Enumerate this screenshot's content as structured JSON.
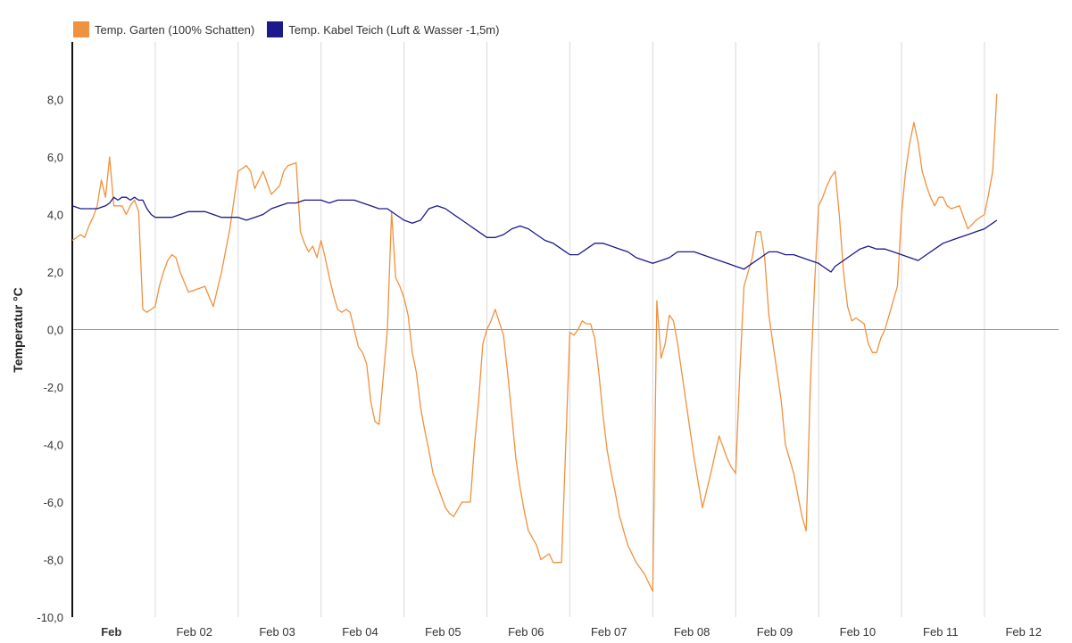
{
  "legend": {
    "series0": "Temp. Garten (100% Schatten)",
    "series1": "Temp. Kabel Teich (Luft & Wasser -1,5m)"
  },
  "colors": {
    "series0": "#f0913e",
    "series1": "#1b1a8a",
    "grid": "#d8d8d8",
    "axis": "#111111",
    "zero": "#9a9a9a"
  },
  "chart_data": {
    "type": "line",
    "xlabel": "",
    "ylabel": "Temperatur °C",
    "ylim": [
      -10,
      10
    ],
    "xlim": [
      0,
      11.15
    ],
    "yticks": [
      {
        "v": 8,
        "label": "8,0"
      },
      {
        "v": 6,
        "label": "6,0"
      },
      {
        "v": 4,
        "label": "4,0"
      },
      {
        "v": 2,
        "label": "2,0"
      },
      {
        "v": 0,
        "label": "0,0"
      },
      {
        "v": -2,
        "label": "-2,0"
      },
      {
        "v": -4,
        "label": "-4,0"
      },
      {
        "v": -6,
        "label": "-6,0"
      },
      {
        "v": -8,
        "label": "-8,0"
      },
      {
        "v": -10,
        "label": "-10,0"
      }
    ],
    "xticks": [
      {
        "v": 0.45,
        "label": "Feb",
        "bold": true
      },
      {
        "v": 1.45,
        "label": "Feb 02"
      },
      {
        "v": 2.45,
        "label": "Feb 03"
      },
      {
        "v": 3.45,
        "label": "Feb 04"
      },
      {
        "v": 4.45,
        "label": "Feb 05"
      },
      {
        "v": 5.45,
        "label": "Feb 06"
      },
      {
        "v": 6.45,
        "label": "Feb 07"
      },
      {
        "v": 7.45,
        "label": "Feb 08"
      },
      {
        "v": 8.45,
        "label": "Feb 09"
      },
      {
        "v": 9.45,
        "label": "Feb 10"
      },
      {
        "v": 10.45,
        "label": "Feb 11"
      },
      {
        "v": 11.45,
        "label": "Feb 12"
      }
    ],
    "gridlines_x": [
      1,
      2,
      3,
      4,
      5,
      6,
      7,
      8,
      9,
      10,
      11
    ],
    "series": [
      {
        "name": "Temp. Garten (100% Schatten)",
        "x": [
          0.0,
          0.1,
          0.15,
          0.2,
          0.25,
          0.3,
          0.35,
          0.4,
          0.45,
          0.5,
          0.55,
          0.6,
          0.65,
          0.7,
          0.75,
          0.8,
          0.85,
          0.9,
          0.95,
          1.0,
          1.05,
          1.1,
          1.15,
          1.2,
          1.25,
          1.3,
          1.4,
          1.5,
          1.6,
          1.7,
          1.8,
          1.9,
          2.0,
          2.1,
          2.15,
          2.2,
          2.3,
          2.4,
          2.5,
          2.55,
          2.6,
          2.7,
          2.75,
          2.8,
          2.85,
          2.9,
          2.95,
          3.0,
          3.05,
          3.1,
          3.15,
          3.2,
          3.25,
          3.3,
          3.35,
          3.4,
          3.45,
          3.5,
          3.55,
          3.6,
          3.65,
          3.7,
          3.8,
          3.85,
          3.9,
          3.95,
          4.0,
          4.05,
          4.1,
          4.15,
          4.2,
          4.25,
          4.3,
          4.35,
          4.4,
          4.45,
          4.5,
          4.55,
          4.6,
          4.7,
          4.8,
          4.85,
          4.9,
          4.95,
          5.0,
          5.05,
          5.1,
          5.2,
          5.25,
          5.3,
          5.35,
          5.4,
          5.45,
          5.5,
          5.6,
          5.65,
          5.7,
          5.75,
          5.8,
          5.9,
          6.0,
          6.05,
          6.1,
          6.15,
          6.2,
          6.25,
          6.3,
          6.35,
          6.4,
          6.45,
          6.5,
          6.55,
          6.6,
          6.7,
          6.8,
          6.9,
          7.0,
          7.05,
          7.1,
          7.15,
          7.2,
          7.25,
          7.3,
          7.35,
          7.4,
          7.45,
          7.5,
          7.6,
          7.7,
          7.8,
          7.9,
          7.95,
          8.0,
          8.05,
          8.1,
          8.15,
          8.2,
          8.25,
          8.3,
          8.35,
          8.4,
          8.45,
          8.5,
          8.55,
          8.6,
          8.7,
          8.8,
          8.85,
          8.9,
          8.95,
          9.0,
          9.05,
          9.1,
          9.15,
          9.2,
          9.25,
          9.3,
          9.35,
          9.4,
          9.45,
          9.5,
          9.55,
          9.6,
          9.65,
          9.7,
          9.75,
          9.8,
          9.85,
          9.9,
          9.95,
          10.0,
          10.05,
          10.1,
          10.15,
          10.2,
          10.25,
          10.3,
          10.35,
          10.4,
          10.45,
          10.5,
          10.55,
          10.6,
          10.7,
          10.8,
          10.9,
          11.0,
          11.05,
          11.1,
          11.15
        ],
        "values": [
          3.1,
          3.3,
          3.2,
          3.6,
          3.9,
          4.3,
          5.2,
          4.6,
          6.0,
          4.3,
          4.3,
          4.3,
          4.0,
          4.3,
          4.5,
          4.1,
          0.7,
          0.6,
          0.7,
          0.8,
          1.5,
          2.0,
          2.4,
          2.6,
          2.5,
          2.0,
          1.3,
          1.4,
          1.5,
          0.8,
          2.0,
          3.5,
          5.5,
          5.7,
          5.5,
          4.9,
          5.5,
          4.7,
          5.0,
          5.5,
          5.7,
          5.8,
          3.4,
          3.0,
          2.7,
          2.9,
          2.5,
          3.1,
          2.5,
          1.8,
          1.2,
          0.7,
          0.6,
          0.7,
          0.6,
          0.0,
          -0.6,
          -0.8,
          -1.2,
          -2.5,
          -3.2,
          -3.3,
          0.0,
          4.1,
          1.8,
          1.5,
          1.1,
          0.5,
          -0.8,
          -1.5,
          -2.7,
          -3.5,
          -4.2,
          -5.0,
          -5.4,
          -5.8,
          -6.2,
          -6.4,
          -6.5,
          -6.0,
          -6.0,
          -4.0,
          -2.5,
          -0.5,
          0.0,
          0.3,
          0.7,
          -0.2,
          -1.5,
          -3.0,
          -4.5,
          -5.5,
          -6.3,
          -7.0,
          -7.5,
          -8.0,
          -7.9,
          -7.8,
          -8.1,
          -8.1,
          -0.1,
          -0.2,
          0.0,
          0.3,
          0.2,
          0.2,
          -0.3,
          -1.5,
          -3.0,
          -4.2,
          -5.0,
          -5.7,
          -6.5,
          -7.5,
          -8.1,
          -8.5,
          -9.1,
          1.0,
          -1.0,
          -0.5,
          0.5,
          0.3,
          -0.5,
          -1.5,
          -2.5,
          -3.5,
          -4.5,
          -6.2,
          -5.0,
          -3.7,
          -4.5,
          -4.8,
          -5.0,
          -1.5,
          1.5,
          2.0,
          2.5,
          3.4,
          3.4,
          2.5,
          0.5,
          -0.5,
          -1.5,
          -2.5,
          -4.0,
          -5.0,
          -6.5,
          -7.0,
          -2.0,
          1.5,
          4.3,
          4.6,
          5.0,
          5.3,
          5.5,
          4.0,
          2.0,
          0.8,
          0.3,
          0.4,
          0.3,
          0.2,
          -0.5,
          -0.8,
          -0.8,
          -0.3,
          0.0,
          0.5,
          1.0,
          1.5,
          4.0,
          5.5,
          6.5,
          7.2,
          6.5,
          5.5,
          5.0,
          4.6,
          4.3,
          4.6,
          4.6,
          4.3,
          4.2,
          4.3,
          3.5,
          3.8,
          4.0,
          4.7,
          5.5,
          8.2
        ]
      },
      {
        "name": "Temp. Kabel Teich (Luft & Wasser -1,5m)",
        "x": [
          0.0,
          0.1,
          0.15,
          0.3,
          0.4,
          0.45,
          0.5,
          0.55,
          0.6,
          0.65,
          0.7,
          0.75,
          0.8,
          0.85,
          0.9,
          0.95,
          1.0,
          1.05,
          1.1,
          1.2,
          1.3,
          1.4,
          1.5,
          1.6,
          1.7,
          1.8,
          1.9,
          2.0,
          2.1,
          2.2,
          2.3,
          2.4,
          2.5,
          2.6,
          2.7,
          2.8,
          2.9,
          3.0,
          3.1,
          3.2,
          3.3,
          3.4,
          3.5,
          3.6,
          3.7,
          3.8,
          3.9,
          4.0,
          4.1,
          4.2,
          4.25,
          4.3,
          4.4,
          4.5,
          4.6,
          4.7,
          4.8,
          4.9,
          5.0,
          5.1,
          5.2,
          5.3,
          5.4,
          5.5,
          5.6,
          5.7,
          5.8,
          5.9,
          6.0,
          6.1,
          6.2,
          6.3,
          6.4,
          6.5,
          6.6,
          6.7,
          6.8,
          6.9,
          7.0,
          7.1,
          7.2,
          7.3,
          7.4,
          7.5,
          7.6,
          7.7,
          7.8,
          7.9,
          8.0,
          8.1,
          8.2,
          8.3,
          8.4,
          8.5,
          8.6,
          8.7,
          8.8,
          8.9,
          9.0,
          9.05,
          9.1,
          9.15,
          9.2,
          9.3,
          9.4,
          9.5,
          9.6,
          9.7,
          9.8,
          9.9,
          10.0,
          10.1,
          10.2,
          10.3,
          10.4,
          10.5,
          10.6,
          10.7,
          10.8,
          10.9,
          11.0,
          11.05,
          11.1,
          11.15
        ],
        "values": [
          4.3,
          4.2,
          4.2,
          4.2,
          4.3,
          4.4,
          4.6,
          4.5,
          4.6,
          4.6,
          4.5,
          4.6,
          4.5,
          4.5,
          4.2,
          4.0,
          3.9,
          3.9,
          3.9,
          3.9,
          4.0,
          4.1,
          4.1,
          4.1,
          4.0,
          3.9,
          3.9,
          3.9,
          3.8,
          3.9,
          4.0,
          4.2,
          4.3,
          4.4,
          4.4,
          4.5,
          4.5,
          4.5,
          4.4,
          4.5,
          4.5,
          4.5,
          4.4,
          4.3,
          4.2,
          4.2,
          4.0,
          3.8,
          3.7,
          3.8,
          4.0,
          4.2,
          4.3,
          4.2,
          4.0,
          3.8,
          3.6,
          3.4,
          3.2,
          3.2,
          3.3,
          3.5,
          3.6,
          3.5,
          3.3,
          3.1,
          3.0,
          2.8,
          2.6,
          2.6,
          2.8,
          3.0,
          3.0,
          2.9,
          2.8,
          2.7,
          2.5,
          2.4,
          2.3,
          2.4,
          2.5,
          2.7,
          2.7,
          2.7,
          2.6,
          2.5,
          2.4,
          2.3,
          2.2,
          2.1,
          2.3,
          2.5,
          2.7,
          2.7,
          2.6,
          2.6,
          2.5,
          2.4,
          2.3,
          2.2,
          2.1,
          2.0,
          2.2,
          2.4,
          2.6,
          2.8,
          2.9,
          2.8,
          2.8,
          2.7,
          2.6,
          2.5,
          2.4,
          2.6,
          2.8,
          3.0,
          3.1,
          3.2,
          3.3,
          3.4,
          3.5,
          3.6,
          3.7,
          3.8
        ]
      }
    ]
  }
}
